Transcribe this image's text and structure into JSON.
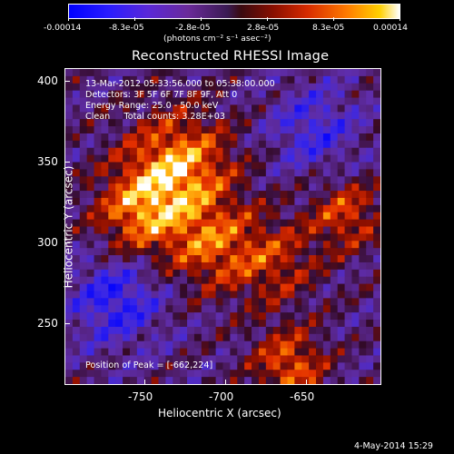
{
  "colorbar": {
    "tick_labels": [
      "-0.00014",
      "-8.3e-05",
      "-2.8e-05",
      "2.8e-05",
      "8.3e-05",
      "0.00014"
    ],
    "units_label": "(photons cm⁻² s⁻¹ asec⁻²)"
  },
  "chart_data": {
    "type": "heatmap",
    "title": "Reconstructed RHESSI Image",
    "xlabel": "Heliocentric X (arcsec)",
    "ylabel": "Heliocentric Y (arcsec)",
    "x_ticks": [
      -750,
      -700,
      -650
    ],
    "y_ticks": [
      250,
      300,
      350,
      400
    ],
    "xlim": [
      -797,
      -600
    ],
    "ylim": [
      213,
      409
    ],
    "color_range": [
      -0.00014,
      0.00014
    ],
    "peak_position": [
      -662,
      224
    ]
  },
  "annotations": {
    "time_range": "13-Mar-2012 05:33:56.000 to 05:38:00.000",
    "detectors": "Detectors: 3F 5F 6F 7F 8F 9F, Att 0",
    "energy_range": "Energy Range: 25.0 - 50.0 keV",
    "clean_counts": "Clean     Total counts: 3.28E+03",
    "peak_position": "Position of Peak = [-662,224]"
  },
  "footer": {
    "timestamp": "4-May-2014 15:29"
  }
}
